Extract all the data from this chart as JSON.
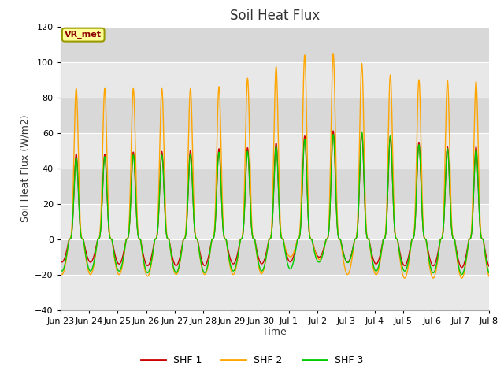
{
  "title": "Soil Heat Flux",
  "ylabel": "Soil Heat Flux (W/m2)",
  "xlabel": "Time",
  "ylim": [
    -40,
    120
  ],
  "yticks": [
    -40,
    -20,
    0,
    20,
    40,
    60,
    80,
    100,
    120
  ],
  "band_colors": [
    "#e8e8e8",
    "#d8d8d8"
  ],
  "legend_labels": [
    "SHF 1",
    "SHF 2",
    "SHF 3"
  ],
  "legend_colors": [
    "#cc0000",
    "#ffa500",
    "#00cc00"
  ],
  "vr_met_box_color": "#ffff99",
  "vr_met_border_color": "#999900",
  "title_fontsize": 12,
  "label_fontsize": 9,
  "tick_fontsize": 8,
  "tick_labels": [
    "Jun 23",
    "Jun 24",
    "Jun 25",
    "Jun 26",
    "Jun 27",
    "Jun 28",
    "Jun 29",
    "Jun 30",
    "Jul 1",
    "Jul 2",
    "Jul 3",
    "Jul 4",
    "Jul 5",
    "Jul 6",
    "Jul 7",
    "Jul 8"
  ],
  "n_days": 15,
  "shf2_peaks": [
    85,
    85,
    85,
    85,
    85,
    87,
    94,
    100,
    107,
    103,
    96,
    90,
    90,
    89,
    89
  ],
  "shf2_troughs": [
    -20,
    -20,
    -21,
    -20,
    -20,
    -20,
    -20,
    -10,
    -11,
    -20,
    -20,
    -22,
    -22,
    -22,
    -22
  ],
  "shf1_peaks": [
    48,
    48,
    50,
    49,
    51,
    51,
    52,
    56,
    60,
    62,
    58,
    58,
    52,
    52,
    52
  ],
  "shf1_troughs": [
    -13,
    -14,
    -15,
    -15,
    -15,
    -14,
    -14,
    -13,
    -10,
    -13,
    -14,
    -15,
    -15,
    -16,
    -16
  ],
  "shf3_peaks": [
    46,
    47,
    48,
    47,
    49,
    49,
    50,
    54,
    58,
    60,
    61,
    56,
    51,
    51,
    50
  ],
  "shf3_troughs": [
    -18,
    -18,
    -19,
    -19,
    -19,
    -18,
    -18,
    -17,
    -13,
    -13,
    -18,
    -18,
    -19,
    -20,
    -20
  ]
}
